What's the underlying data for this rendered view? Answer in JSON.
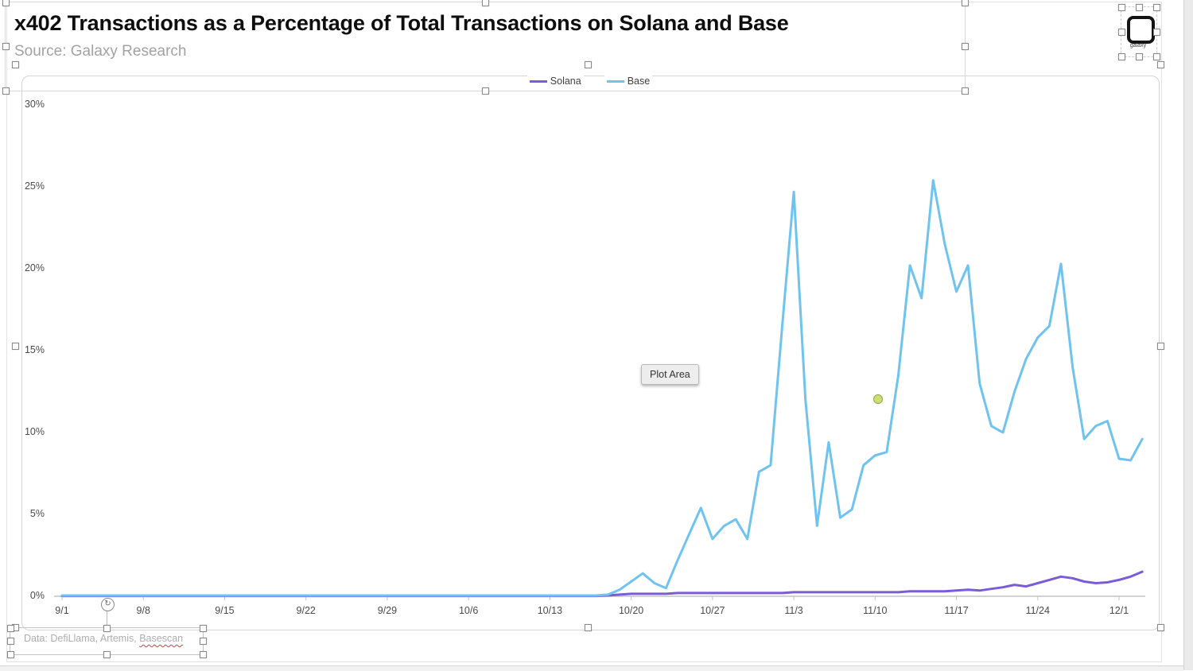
{
  "header": {
    "title": "x402 Transactions as a Percentage of Total Transactions on Solana and Base",
    "source": "Source: Galaxy Research"
  },
  "footer": {
    "prefix": "Data: DefiLlama, Artemis, ",
    "flagged_word": "Basescan"
  },
  "overlays": {
    "plot_area_label": "Plot Area"
  },
  "logo": {
    "text": "galaxy"
  },
  "colors": {
    "solana_line": "#7B5CD8",
    "base_line": "#6FC3EF",
    "axis": "#c4c4c4",
    "spellcheck_underline": "#e03b2f",
    "marker_dot": "#cedd74"
  },
  "chart_data": {
    "type": "line",
    "title": "x402 Transactions as a Percentage of Total Transactions on Solana and Base",
    "subtitle": "Source: Galaxy Research",
    "xlabel": "",
    "ylabel": "",
    "ylim": [
      0,
      30
    ],
    "grid": "off",
    "legend_position": "top-center",
    "y_tick_values": [
      0,
      5,
      10,
      15,
      20,
      25,
      30
    ],
    "y_tick_labels": [
      "0%",
      "5%",
      "10%",
      "15%",
      "20%",
      "25%",
      "30%"
    ],
    "x_start_date": "9/1",
    "x_frequency": "daily",
    "x_tick_labels": [
      "9/1",
      "9/8",
      "9/15",
      "9/22",
      "9/29",
      "10/6",
      "10/13",
      "10/20",
      "10/27",
      "11/3",
      "11/10",
      "11/17",
      "11/24",
      "12/1"
    ],
    "x_tick_day_indices": [
      0,
      7,
      14,
      21,
      28,
      35,
      42,
      49,
      56,
      63,
      70,
      77,
      84,
      91
    ],
    "series": [
      {
        "name": "Solana",
        "color": "#7B5CD8",
        "values": [
          0.02,
          0.02,
          0.02,
          0.02,
          0.02,
          0.02,
          0.02,
          0.02,
          0.02,
          0.02,
          0.02,
          0.02,
          0.02,
          0.02,
          0.02,
          0.02,
          0.02,
          0.02,
          0.02,
          0.02,
          0.02,
          0.02,
          0.02,
          0.02,
          0.02,
          0.02,
          0.02,
          0.02,
          0.02,
          0.02,
          0.02,
          0.02,
          0.02,
          0.02,
          0.02,
          0.02,
          0.02,
          0.02,
          0.02,
          0.02,
          0.02,
          0.02,
          0.02,
          0.02,
          0.02,
          0.02,
          0.02,
          0.05,
          0.1,
          0.15,
          0.15,
          0.15,
          0.15,
          0.2,
          0.2,
          0.2,
          0.2,
          0.2,
          0.2,
          0.2,
          0.2,
          0.2,
          0.2,
          0.25,
          0.25,
          0.25,
          0.25,
          0.25,
          0.25,
          0.25,
          0.25,
          0.25,
          0.25,
          0.3,
          0.3,
          0.3,
          0.3,
          0.35,
          0.4,
          0.35,
          0.45,
          0.55,
          0.7,
          0.6,
          0.8,
          1.0,
          1.2,
          1.1,
          0.9,
          0.8,
          0.85,
          1.0,
          1.2,
          1.5
        ]
      },
      {
        "name": "Base",
        "color": "#6FC3EF",
        "values": [
          0.05,
          0.05,
          0.05,
          0.05,
          0.05,
          0.05,
          0.05,
          0.05,
          0.05,
          0.05,
          0.05,
          0.05,
          0.05,
          0.05,
          0.05,
          0.05,
          0.05,
          0.05,
          0.05,
          0.05,
          0.05,
          0.05,
          0.05,
          0.05,
          0.05,
          0.05,
          0.05,
          0.05,
          0.05,
          0.05,
          0.05,
          0.05,
          0.05,
          0.05,
          0.05,
          0.05,
          0.05,
          0.05,
          0.05,
          0.05,
          0.05,
          0.05,
          0.05,
          0.05,
          0.05,
          0.05,
          0.05,
          0.1,
          0.4,
          0.9,
          1.4,
          0.8,
          0.5,
          2.2,
          3.8,
          5.4,
          3.5,
          4.3,
          4.7,
          3.5,
          7.6,
          8.0,
          16.5,
          24.7,
          12.0,
          4.3,
          9.4,
          4.8,
          5.3,
          8.0,
          8.6,
          8.8,
          13.5,
          20.2,
          18.2,
          25.4,
          21.5,
          18.6,
          20.2,
          13.0,
          10.4,
          10.0,
          12.5,
          14.5,
          15.8,
          16.5,
          20.3,
          14.0,
          9.6,
          10.4,
          10.7,
          8.4,
          8.3,
          9.6
        ]
      }
    ]
  }
}
